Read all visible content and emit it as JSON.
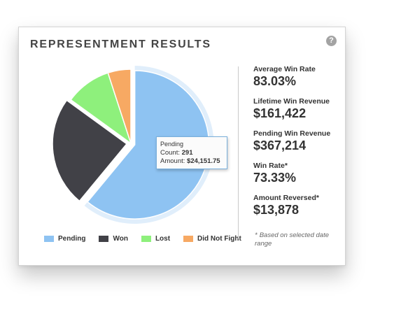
{
  "card": {
    "title": "REPRESENTMENT RESULTS",
    "help_glyph": "?"
  },
  "chart_data": {
    "type": "pie",
    "title": "",
    "categories": [
      "Pending",
      "Won",
      "Lost",
      "Did Not Fight"
    ],
    "values": [
      61,
      24,
      10,
      5
    ],
    "colors": [
      "#8ec3f2",
      "#414147",
      "#8ef07c",
      "#f7a963"
    ],
    "exploded": [
      "Pending",
      "Won"
    ],
    "hovered": "Pending",
    "legend_position": "bottom"
  },
  "tooltip": {
    "name": "Pending",
    "count_label": "Count: ",
    "count_value": "291",
    "amount_label": "Amount: ",
    "amount_value": "$24,151.75"
  },
  "legend": [
    {
      "label": "Pending",
      "color": "#8ec3f2"
    },
    {
      "label": "Won",
      "color": "#414147"
    },
    {
      "label": "Lost",
      "color": "#8ef07c"
    },
    {
      "label": "Did Not Fight",
      "color": "#f7a963"
    }
  ],
  "stats": [
    {
      "label": "Average Win Rate",
      "value": "83.03%"
    },
    {
      "label": "Lifetime Win Revenue",
      "value": "$161,422"
    },
    {
      "label": "Pending Win Revenue",
      "value": "$367,214"
    },
    {
      "label": "Win Rate*",
      "value": "73.33%"
    },
    {
      "label": "Amount Reversed*",
      "value": "$13,878"
    }
  ],
  "note": {
    "star": "*",
    "text": "Based on selected date range"
  }
}
